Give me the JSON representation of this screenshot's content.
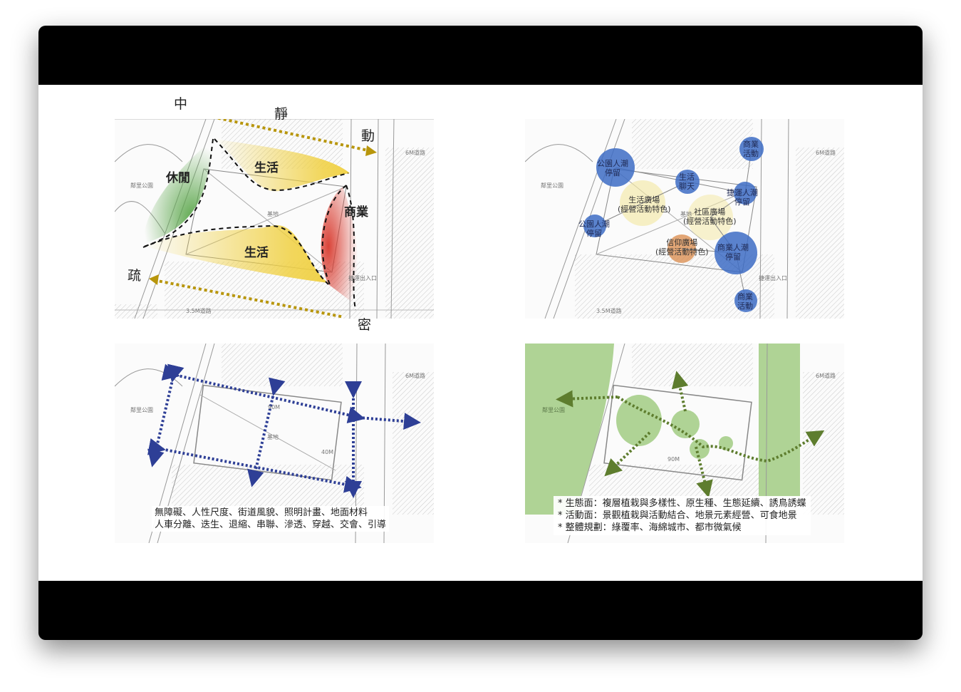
{
  "panel1": {
    "zones": {
      "leisure": "休閒",
      "life_top": "生活",
      "life_bottom": "生活",
      "commerce": "商業"
    },
    "axes": {
      "center": "中",
      "quiet": "靜",
      "active": "動",
      "sparse": "疏",
      "dense": "密"
    },
    "colors": {
      "arrow": "#b8960c",
      "leisure": "#5aa64a",
      "life": "#f0d040",
      "commerce": "#d83a2e"
    }
  },
  "panel2": {
    "bubbles": {
      "park_crowd_top": "公園人潮\n停留",
      "life_chat": "生活\n聊天",
      "commerce_activity_top": "商業\n活動",
      "transit_crowd": "捷運人潮\n停留",
      "park_crowd_left": "公園人潮\n停留",
      "commerce_crowd": "商業人潮\n停留",
      "commerce_activity_bottom": "商業\n活動"
    },
    "plazas": {
      "life_plaza": "生活廣場\n(經營活動特色)",
      "community_plaza": "社區廣場\n(經營活動特色)",
      "faith_plaza": "信仰廣場\n(經營活動特色)"
    },
    "colors": {
      "bubble": "#3d6cc4",
      "life_plaza": "#f3e7a0",
      "community_plaza": "#f3e7a0",
      "faith_plaza": "#d9894a"
    }
  },
  "panel3": {
    "notes": [
      "無障礙、人性尺度、街道風貌、照明計畫、地面材料",
      "人車分離、迭生、退縮、串聯、滲透、穿越、交會、引導"
    ],
    "colors": {
      "arrow": "#2e3f96"
    }
  },
  "panel4": {
    "notes": [
      "* 生態面：複層植栽與多樣性、原生種、生態延續、誘鳥誘蝶",
      "* 活動面：景觀植栽與活動結合、地景元素經營、可食地景",
      "* 整體規劃：綠覆率、海綿城市、都市微氣候"
    ],
    "colors": {
      "green": "#9cc97c",
      "arrow": "#5e7d2e"
    }
  },
  "map_labels": {
    "park": "鄰里公園",
    "site": "基地",
    "road_6m": "6M道路",
    "road_35m": "3.5M道路",
    "metro_exit": "捷運出入口",
    "width_40m": "40M",
    "width_90m": "90M"
  }
}
